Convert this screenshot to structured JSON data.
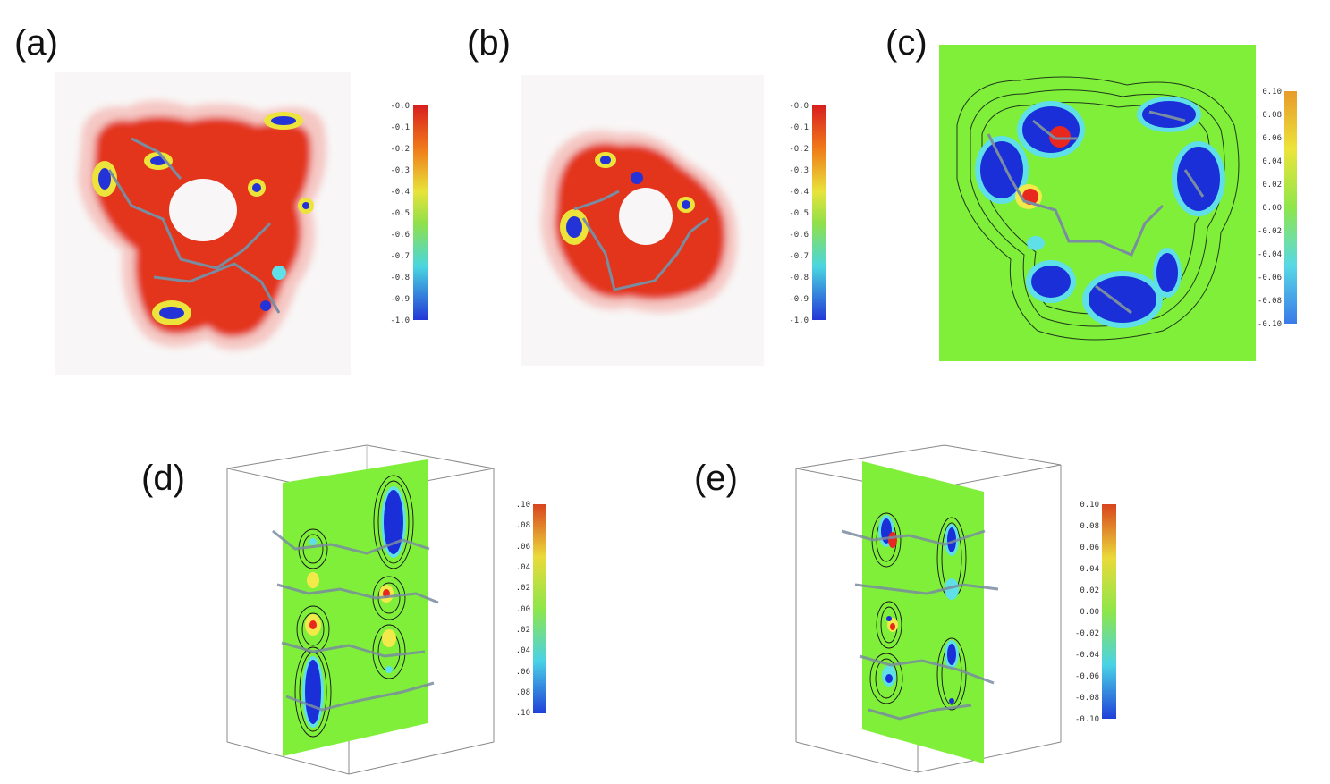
{
  "panels": [
    {
      "label": "(a)",
      "colorbar_ticks": [
        "-0.0",
        "-0.1",
        "-0.2",
        "-0.3",
        "-0.4",
        "-0.5",
        "-0.6",
        "-0.7",
        "-0.8",
        "-0.9",
        "-1.0"
      ]
    },
    {
      "label": "(b)",
      "colorbar_ticks": [
        "-0.0",
        "-0.1",
        "-0.2",
        "-0.3",
        "-0.4",
        "-0.5",
        "-0.6",
        "-0.7",
        "-0.8",
        "-0.9",
        "-1.0"
      ]
    },
    {
      "label": "(c)",
      "colorbar_ticks": [
        "0.10",
        "0.08",
        "0.06",
        "0.04",
        "0.02",
        "0.00",
        "-0.02",
        "-0.04",
        "-0.06",
        "-0.08",
        "-0.10"
      ]
    },
    {
      "label": "(d)",
      "colorbar_ticks": [
        ".10",
        ".08",
        ".06",
        ".04",
        ".02",
        ".00",
        ".02",
        ".04",
        ".06",
        ".08",
        ".10"
      ]
    },
    {
      "label": "(e)",
      "colorbar_ticks": [
        "0.10",
        "0.08",
        "0.06",
        "0.04",
        "0.02",
        "0.00",
        "-0.02",
        "-0.04",
        "-0.06",
        "-0.08",
        "-0.10"
      ]
    }
  ],
  "colors": {
    "background_green": "#7fef3a",
    "red": "#e8281e",
    "blue": "#1a2fd8",
    "cyan": "#5fe0e8",
    "yellow": "#f2e94a",
    "molecule": "#7a8ca0"
  }
}
